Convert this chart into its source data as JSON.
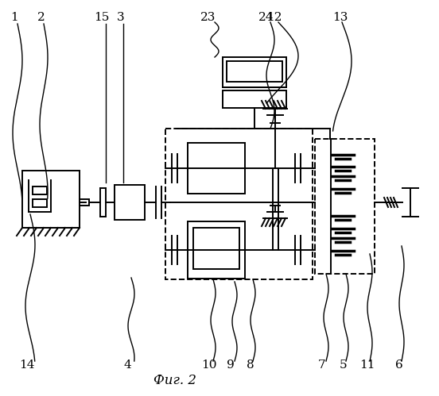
{
  "background": "#ffffff",
  "line_color": "#000000",
  "title": "Фиг. 2",
  "lw": 1.4,
  "fig_w": 5.52,
  "fig_h": 4.99,
  "dpi": 100
}
